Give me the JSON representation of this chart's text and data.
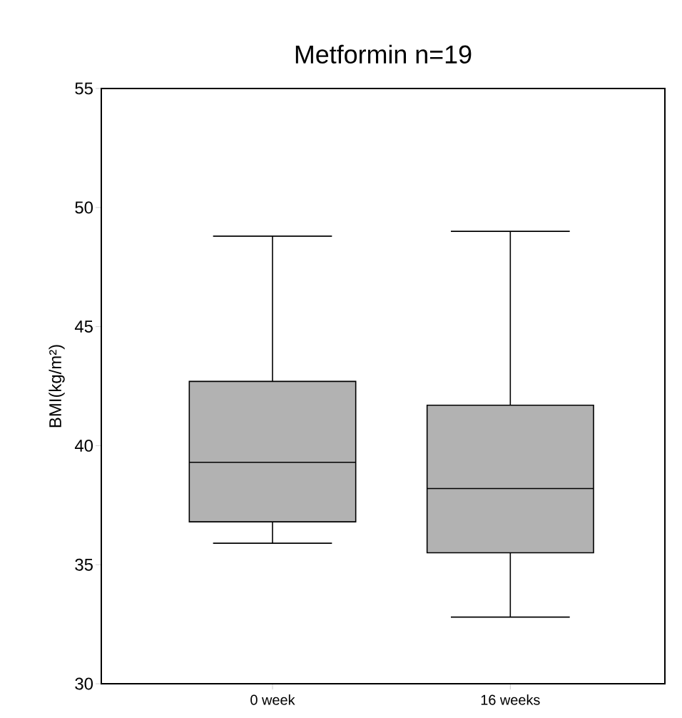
{
  "chart_data": {
    "type": "box",
    "title": "Metformin n=19",
    "ylabel": "BMI(kg/m²)",
    "categories": [
      "0 week",
      "16 weeks"
    ],
    "boxes": [
      {
        "low": 35.9,
        "q1": 36.8,
        "median": 39.3,
        "q3": 42.7,
        "high": 48.8
      },
      {
        "low": 32.8,
        "q1": 35.5,
        "median": 38.2,
        "q3": 41.7,
        "high": 49.0
      }
    ],
    "color": "#000000",
    "ylim": [
      30,
      55
    ],
    "yticks": [
      30,
      35,
      40,
      45,
      50,
      55
    ],
    "grid": false
  }
}
